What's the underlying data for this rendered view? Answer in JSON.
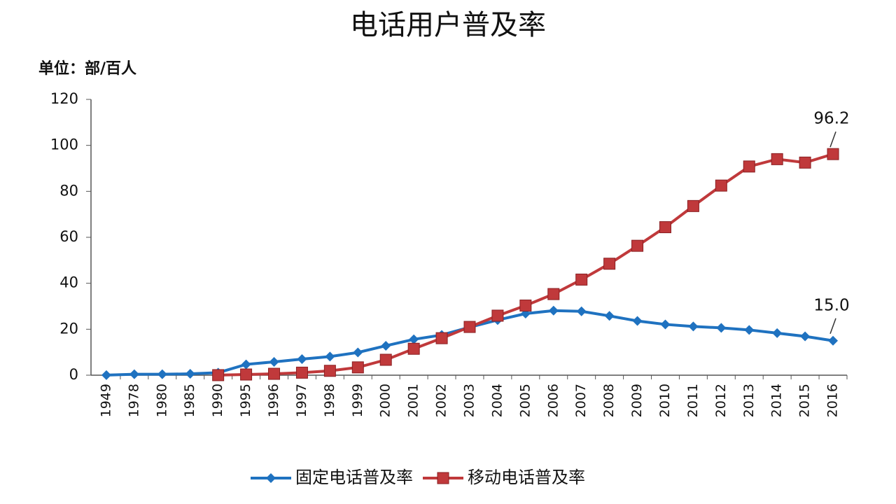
{
  "chart_data": {
    "type": "line",
    "title": "电话用户普及率",
    "y_axis_label": "单位：部/百人",
    "categories": [
      "1949",
      "1978",
      "1980",
      "1985",
      "1990",
      "1995",
      "1996",
      "1997",
      "1998",
      "1999",
      "2000",
      "2001",
      "2002",
      "2003",
      "2004",
      "2005",
      "2006",
      "2007",
      "2008",
      "2009",
      "2010",
      "2011",
      "2012",
      "2013",
      "2014",
      "2015",
      "2016"
    ],
    "series": [
      {
        "name": "固定电话普及率",
        "color": "#1f72c0",
        "marker": "diamond",
        "values": [
          0.05,
          0.4,
          0.4,
          0.6,
          1.1,
          4.7,
          5.8,
          7.0,
          8.1,
          9.9,
          12.8,
          15.6,
          17.5,
          20.9,
          24.0,
          26.8,
          28.1,
          27.8,
          25.8,
          23.6,
          22.1,
          21.2,
          20.6,
          19.7,
          18.3,
          16.9,
          15.0
        ],
        "value_labels": [
          null,
          null,
          null,
          null,
          null,
          null,
          null,
          null,
          null,
          null,
          null,
          null,
          null,
          null,
          null,
          null,
          null,
          null,
          null,
          null,
          null,
          null,
          null,
          null,
          null,
          null,
          "15.0"
        ]
      },
      {
        "name": "移动电话普及率",
        "color": "#c0393b",
        "marker": "square",
        "values": [
          null,
          null,
          null,
          null,
          0.02,
          0.3,
          0.6,
          1.1,
          1.9,
          3.4,
          6.7,
          11.5,
          16.1,
          21.0,
          25.9,
          30.3,
          35.3,
          41.6,
          48.5,
          56.3,
          64.4,
          73.6,
          82.5,
          90.8,
          94.0,
          92.5,
          96.2
        ],
        "value_labels": [
          null,
          null,
          null,
          null,
          null,
          null,
          null,
          null,
          null,
          null,
          null,
          null,
          null,
          null,
          null,
          null,
          null,
          null,
          null,
          null,
          null,
          null,
          null,
          null,
          null,
          null,
          "96.2"
        ]
      }
    ],
    "ylim": [
      0,
      120
    ],
    "yticks": [
      0,
      20,
      40,
      60,
      80,
      100,
      120
    ],
    "legend": "bottom"
  }
}
